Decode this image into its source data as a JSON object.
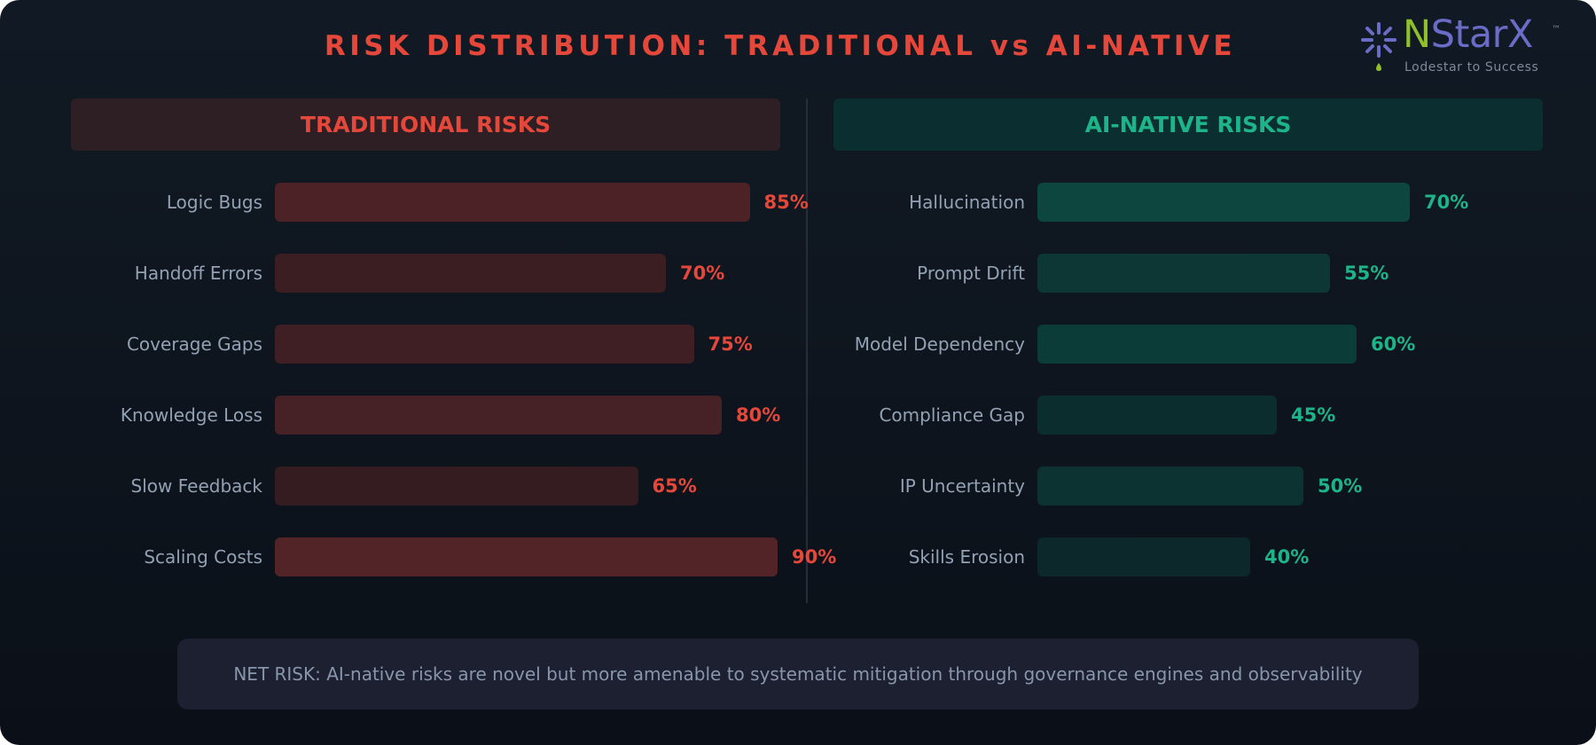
{
  "title": "RISK DISTRIBUTION: TRADITIONAL vs AI-NATIVE",
  "logo": {
    "name_initial": "N",
    "name_rest": "StarX",
    "trademark": "™",
    "tagline": "Lodestar to Success",
    "colors": {
      "initial": "#8fbf2a",
      "rest": "#6a6cc8"
    },
    "icon": "sparkle-star-icon"
  },
  "colors": {
    "traditional_accent": "#e5483a",
    "ai_accent": "#1eb48a",
    "label": "#93a1b4"
  },
  "chart_data": [
    {
      "type": "bar",
      "orientation": "horizontal",
      "title": "TRADITIONAL RISKS",
      "categories": [
        "Logic Bugs",
        "Handoff Errors",
        "Coverage Gaps",
        "Knowledge Loss",
        "Slow Feedback",
        "Scaling Costs"
      ],
      "values": [
        85,
        70,
        75,
        80,
        65,
        90
      ],
      "value_labels": [
        "85%",
        "70%",
        "75%",
        "80%",
        "65%",
        "90%"
      ],
      "xlim": [
        0,
        100
      ],
      "grid": false,
      "legend": "none",
      "colors": {
        "bar_low": [
          52,
          28,
          33
        ],
        "bar_high": [
          82,
          36,
          40
        ],
        "value": "#e5483a"
      }
    },
    {
      "type": "bar",
      "orientation": "horizontal",
      "title": "AI-NATIVE RISKS",
      "categories": [
        "Hallucination",
        "Prompt Drift",
        "Model Dependency",
        "Compliance Gap",
        "IP Uncertainty",
        "Skills Erosion"
      ],
      "values": [
        70,
        55,
        60,
        45,
        50,
        40
      ],
      "value_labels": [
        "70%",
        "55%",
        "60%",
        "45%",
        "50%",
        "40%"
      ],
      "xlim": [
        0,
        100
      ],
      "grid": false,
      "legend": "none",
      "colors": {
        "bar_low": [
          12,
          40,
          42
        ],
        "bar_high": [
          12,
          70,
          62
        ],
        "value": "#1eb48a"
      }
    }
  ],
  "note": "NET RISK: AI-native risks are novel but more amenable to systematic mitigation through governance engines and observability"
}
